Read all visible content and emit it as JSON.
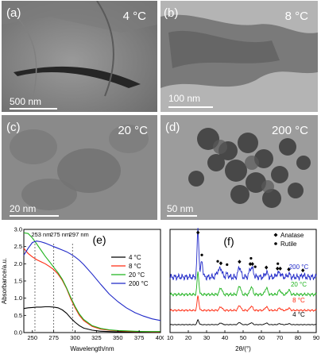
{
  "panels": [
    {
      "id": "a",
      "label": "(a)",
      "temperature": "4 °C",
      "scale": "500 nm"
    },
    {
      "id": "b",
      "label": "(b)",
      "temperature": "8 °C",
      "scale": "100 nm"
    },
    {
      "id": "c",
      "label": "(c)",
      "temperature": "20 °C",
      "scale": "20 nm"
    },
    {
      "id": "d",
      "label": "(d)",
      "temperature": "200 °C",
      "scale": "50 nm"
    }
  ],
  "colors": {
    "black": "#000000",
    "red": "#ff2a10",
    "green": "#1fb31f",
    "blue": "#1f28c8"
  },
  "chart_data": [
    {
      "panel": "(e)",
      "type": "line",
      "xlabel": "Wavelength/nm",
      "ylabel": "Absorbance/a.u.",
      "xlim": [
        240,
        400
      ],
      "ylim": [
        0,
        3.0
      ],
      "xticks": [
        "250",
        "275",
        "300",
        "325",
        "350",
        "375",
        "400"
      ],
      "yticks": [
        "0.0",
        "0.5",
        "1.0",
        "1.5",
        "2.0",
        "2.5",
        "3.0"
      ],
      "annotations": [
        "253 nm",
        "275 nm",
        "297 nm"
      ],
      "annotation_x": [
        253,
        275,
        297
      ],
      "legend_position": "top-right",
      "series": [
        {
          "name": "4 °C",
          "color": "#000000",
          "x": [
            240,
            245,
            250,
            255,
            260,
            265,
            270,
            275,
            280,
            285,
            290,
            295,
            300,
            305,
            310,
            320,
            330,
            340,
            350,
            360,
            370,
            380,
            390,
            400
          ],
          "y": [
            0.7,
            0.72,
            0.73,
            0.74,
            0.74,
            0.75,
            0.75,
            0.74,
            0.72,
            0.66,
            0.56,
            0.42,
            0.3,
            0.2,
            0.13,
            0.07,
            0.04,
            0.03,
            0.02,
            0.02,
            0.01,
            0.01,
            0.01,
            0.01
          ]
        },
        {
          "name": "8 °C",
          "color": "#ff2a10",
          "x": [
            240,
            245,
            250,
            255,
            260,
            265,
            270,
            275,
            280,
            285,
            290,
            295,
            300,
            305,
            310,
            320,
            330,
            340,
            350,
            360,
            370,
            380,
            390,
            400
          ],
          "y": [
            2.45,
            2.3,
            2.2,
            2.12,
            2.06,
            2.0,
            1.92,
            1.83,
            1.7,
            1.52,
            1.28,
            0.98,
            0.72,
            0.5,
            0.35,
            0.18,
            0.1,
            0.07,
            0.05,
            0.04,
            0.03,
            0.03,
            0.02,
            0.02
          ]
        },
        {
          "name": "20 °C",
          "color": "#1fb31f",
          "x": [
            240,
            245,
            250,
            255,
            260,
            265,
            270,
            275,
            280,
            285,
            290,
            295,
            300,
            305,
            310,
            320,
            330,
            340,
            350,
            360,
            370,
            380,
            390,
            400
          ],
          "y": [
            2.9,
            2.88,
            2.75,
            2.58,
            2.4,
            2.22,
            2.06,
            1.9,
            1.74,
            1.55,
            1.3,
            1.02,
            0.76,
            0.54,
            0.38,
            0.2,
            0.12,
            0.08,
            0.06,
            0.05,
            0.04,
            0.03,
            0.03,
            0.03
          ]
        },
        {
          "name": "200 °C",
          "color": "#1f28c8",
          "x": [
            240,
            245,
            250,
            255,
            260,
            265,
            270,
            275,
            280,
            285,
            290,
            295,
            300,
            305,
            310,
            320,
            330,
            340,
            350,
            360,
            370,
            380,
            390,
            400
          ],
          "y": [
            2.25,
            2.45,
            2.62,
            2.66,
            2.64,
            2.6,
            2.55,
            2.5,
            2.45,
            2.4,
            2.35,
            2.28,
            2.2,
            2.1,
            1.98,
            1.7,
            1.4,
            1.12,
            0.9,
            0.72,
            0.58,
            0.48,
            0.4,
            0.35
          ]
        }
      ]
    },
    {
      "panel": "(f)",
      "type": "line",
      "xlabel": "2θ/(°)",
      "ylabel": "",
      "xlim": [
        10,
        90
      ],
      "xticks": [
        "10",
        "20",
        "30",
        "40",
        "50",
        "60",
        "70",
        "80",
        "90"
      ],
      "legend": [
        "Anatase",
        "Rutile"
      ],
      "legend_position": "top-right",
      "anatase_peaks": [
        25.3,
        37.8,
        48.0,
        53.9,
        55.1,
        62.7,
        68.8,
        70.3,
        75.0,
        82.7
      ],
      "rutile_peaks": [
        27.4,
        36.1,
        41.2,
        54.3,
        56.6,
        69.0
      ],
      "series": [
        {
          "name": "4 °C",
          "color": "#000000",
          "offset": 0,
          "scale": 6,
          "peaks": [
            [
              25.3,
              1.0
            ],
            [
              37.8,
              0.35
            ],
            [
              48.0,
              0.45
            ],
            [
              54.5,
              0.4
            ],
            [
              62.7,
              0.35
            ],
            [
              70.0,
              0.2
            ],
            [
              75.0,
              0.2
            ]
          ]
        },
        {
          "name": "8 °C",
          "color": "#ff2a10",
          "offset": 18,
          "scale": 18,
          "peaks": [
            [
              25.3,
              1.0
            ],
            [
              37.8,
              0.25
            ],
            [
              48.0,
              0.35
            ],
            [
              54.5,
              0.3
            ],
            [
              62.7,
              0.25
            ],
            [
              70.0,
              0.15
            ],
            [
              75.0,
              0.15
            ]
          ]
        },
        {
          "name": "20 °C",
          "color": "#1fb31f",
          "offset": 38,
          "scale": 28,
          "peaks": [
            [
              25.3,
              1.0
            ],
            [
              37.8,
              0.3
            ],
            [
              48.0,
              0.4
            ],
            [
              54.5,
              0.35
            ],
            [
              62.7,
              0.3
            ],
            [
              70.0,
              0.2
            ],
            [
              75.0,
              0.2
            ]
          ]
        },
        {
          "name": "200 °C",
          "color": "#1f28c8",
          "offset": 60,
          "scale": 60,
          "peaks": [
            [
              25.3,
              1.0
            ],
            [
              27.4,
              0.35
            ],
            [
              36.1,
              0.12
            ],
            [
              37.8,
              0.18
            ],
            [
              41.2,
              0.06
            ],
            [
              48.0,
              0.22
            ],
            [
              53.9,
              0.14
            ],
            [
              55.1,
              0.14
            ],
            [
              62.7,
              0.1
            ],
            [
              68.8,
              0.07
            ],
            [
              70.3,
              0.07
            ],
            [
              75.0,
              0.06
            ],
            [
              82.7,
              0.04
            ]
          ]
        }
      ]
    }
  ]
}
